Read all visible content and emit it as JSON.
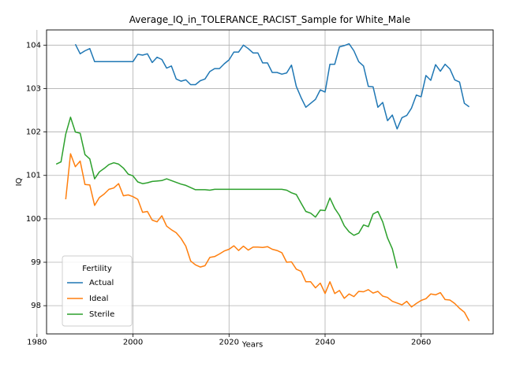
{
  "chart_data": {
    "type": "line",
    "title": "Average_IQ_in_TOLERANCE_RACIST_Sample for White_Male",
    "xlabel": "Years",
    "ylabel": "IQ",
    "xlim": [
      1982,
      2075
    ],
    "ylim": [
      97.35,
      104.35
    ],
    "xticks": [
      1980,
      2000,
      2020,
      2040,
      2060
    ],
    "yticks": [
      98,
      99,
      100,
      101,
      102,
      103,
      104
    ],
    "grid": true,
    "legend": {
      "title": "Fertility",
      "placement": "lower-left"
    },
    "colors": {
      "Actual": "#1f77b4",
      "Ideal": "#ff7f0e",
      "Sterile": "#2ca02c"
    },
    "series": [
      {
        "name": "Actual",
        "x": [
          1988,
          1989,
          1990,
          1991,
          1992,
          1993,
          1994,
          1995,
          1996,
          1997,
          1998,
          1999,
          2000,
          2001,
          2002,
          2003,
          2004,
          2005,
          2006,
          2007,
          2008,
          2009,
          2010,
          2011,
          2012,
          2013,
          2014,
          2015,
          2016,
          2017,
          2018,
          2019,
          2020,
          2021,
          2022,
          2023,
          2024,
          2025,
          2026,
          2027,
          2028,
          2029,
          2030,
          2031,
          2032,
          2033,
          2034,
          2035,
          2036,
          2037,
          2038,
          2039,
          2040,
          2041,
          2042,
          2043,
          2044,
          2045,
          2046,
          2047,
          2048,
          2049,
          2050,
          2051,
          2052,
          2053,
          2054,
          2055,
          2056,
          2057,
          2058,
          2059,
          2060,
          2061,
          2062,
          2063,
          2064,
          2065,
          2066,
          2067,
          2068,
          2069,
          2070
        ],
        "values": [
          104.02,
          103.8,
          103.87,
          103.92,
          103.62,
          103.62,
          103.62,
          103.62,
          103.62,
          103.62,
          103.62,
          103.62,
          103.62,
          103.79,
          103.77,
          103.8,
          103.6,
          103.72,
          103.67,
          103.47,
          103.52,
          103.22,
          103.17,
          103.2,
          103.09,
          103.09,
          103.18,
          103.22,
          103.39,
          103.46,
          103.46,
          103.57,
          103.66,
          103.84,
          103.84,
          104.0,
          103.92,
          103.82,
          103.82,
          103.59,
          103.59,
          103.37,
          103.37,
          103.33,
          103.36,
          103.54,
          103.05,
          102.79,
          102.57,
          102.66,
          102.75,
          102.97,
          102.92,
          103.56,
          103.56,
          103.96,
          103.99,
          104.03,
          103.87,
          103.62,
          103.52,
          103.05,
          103.04,
          102.57,
          102.68,
          102.26,
          102.39,
          102.07,
          102.33,
          102.38,
          102.55,
          102.85,
          102.81,
          103.3,
          103.19,
          103.55,
          103.4,
          103.56,
          103.45,
          103.2,
          103.15,
          102.66,
          102.58
        ]
      },
      {
        "name": "Ideal",
        "x": [
          1986,
          1987,
          1988,
          1989,
          1990,
          1991,
          1992,
          1993,
          1994,
          1995,
          1996,
          1997,
          1998,
          1999,
          2000,
          2001,
          2002,
          2003,
          2004,
          2005,
          2006,
          2007,
          2008,
          2009,
          2010,
          2011,
          2012,
          2013,
          2014,
          2015,
          2016,
          2017,
          2018,
          2019,
          2020,
          2021,
          2022,
          2023,
          2024,
          2025,
          2026,
          2027,
          2028,
          2029,
          2030,
          2031,
          2032,
          2033,
          2034,
          2035,
          2036,
          2037,
          2038,
          2039,
          2040,
          2041,
          2042,
          2043,
          2044,
          2045,
          2046,
          2047,
          2048,
          2049,
          2050,
          2051,
          2052,
          2053,
          2054,
          2055,
          2056,
          2057,
          2058,
          2059,
          2060,
          2061,
          2062,
          2063,
          2064,
          2065,
          2066,
          2067,
          2068,
          2069,
          2070
        ],
        "values": [
          100.45,
          101.5,
          101.2,
          101.33,
          100.79,
          100.78,
          100.31,
          100.49,
          100.57,
          100.68,
          100.71,
          100.81,
          100.53,
          100.55,
          100.51,
          100.45,
          100.15,
          100.17,
          99.97,
          99.93,
          100.07,
          99.83,
          99.75,
          99.68,
          99.55,
          99.37,
          99.03,
          98.94,
          98.89,
          98.92,
          99.11,
          99.13,
          99.19,
          99.26,
          99.3,
          99.38,
          99.27,
          99.37,
          99.28,
          99.35,
          99.35,
          99.34,
          99.36,
          99.3,
          99.27,
          99.22,
          99.0,
          99.01,
          98.84,
          98.79,
          98.55,
          98.55,
          98.41,
          98.52,
          98.28,
          98.55,
          98.28,
          98.35,
          98.17,
          98.27,
          98.21,
          98.33,
          98.32,
          98.37,
          98.29,
          98.33,
          98.22,
          98.19,
          98.1,
          98.06,
          98.02,
          98.1,
          97.97,
          98.05,
          98.12,
          98.16,
          98.27,
          98.25,
          98.3,
          98.14,
          98.13,
          98.05,
          97.94,
          97.85,
          97.65
        ]
      },
      {
        "name": "Sterile",
        "x": [
          1984,
          1985,
          1986,
          1987,
          1988,
          1989,
          1990,
          1991,
          1992,
          1993,
          1994,
          1995,
          1996,
          1997,
          1998,
          1999,
          2000,
          2001,
          2002,
          2003,
          2004,
          2005,
          2006,
          2007,
          2008,
          2009,
          2010,
          2011,
          2012,
          2013,
          2014,
          2015,
          2016,
          2017,
          2018,
          2019,
          2020,
          2021,
          2022,
          2023,
          2024,
          2025,
          2026,
          2027,
          2028,
          2029,
          2030,
          2031,
          2032,
          2033,
          2034,
          2035,
          2036,
          2037,
          2038,
          2039,
          2040,
          2041,
          2042,
          2043,
          2044,
          2045,
          2046,
          2047,
          2048,
          2049,
          2050,
          2051,
          2052,
          2053,
          2054,
          2055
        ],
        "values": [
          101.26,
          101.31,
          101.95,
          102.34,
          102.0,
          101.97,
          101.48,
          101.38,
          100.92,
          101.08,
          101.16,
          101.25,
          101.29,
          101.26,
          101.17,
          101.03,
          100.99,
          100.85,
          100.81,
          100.83,
          100.86,
          100.87,
          100.88,
          100.92,
          100.88,
          100.84,
          100.8,
          100.77,
          100.72,
          100.67,
          100.67,
          100.67,
          100.66,
          100.68,
          100.68,
          100.68,
          100.68,
          100.68,
          100.68,
          100.68,
          100.68,
          100.68,
          100.68,
          100.68,
          100.68,
          100.68,
          100.68,
          100.68,
          100.66,
          100.6,
          100.56,
          100.36,
          100.17,
          100.13,
          100.04,
          100.2,
          100.19,
          100.48,
          100.24,
          100.08,
          99.84,
          99.7,
          99.62,
          99.67,
          99.86,
          99.82,
          100.11,
          100.17,
          99.93,
          99.56,
          99.31,
          98.86
        ]
      }
    ]
  }
}
